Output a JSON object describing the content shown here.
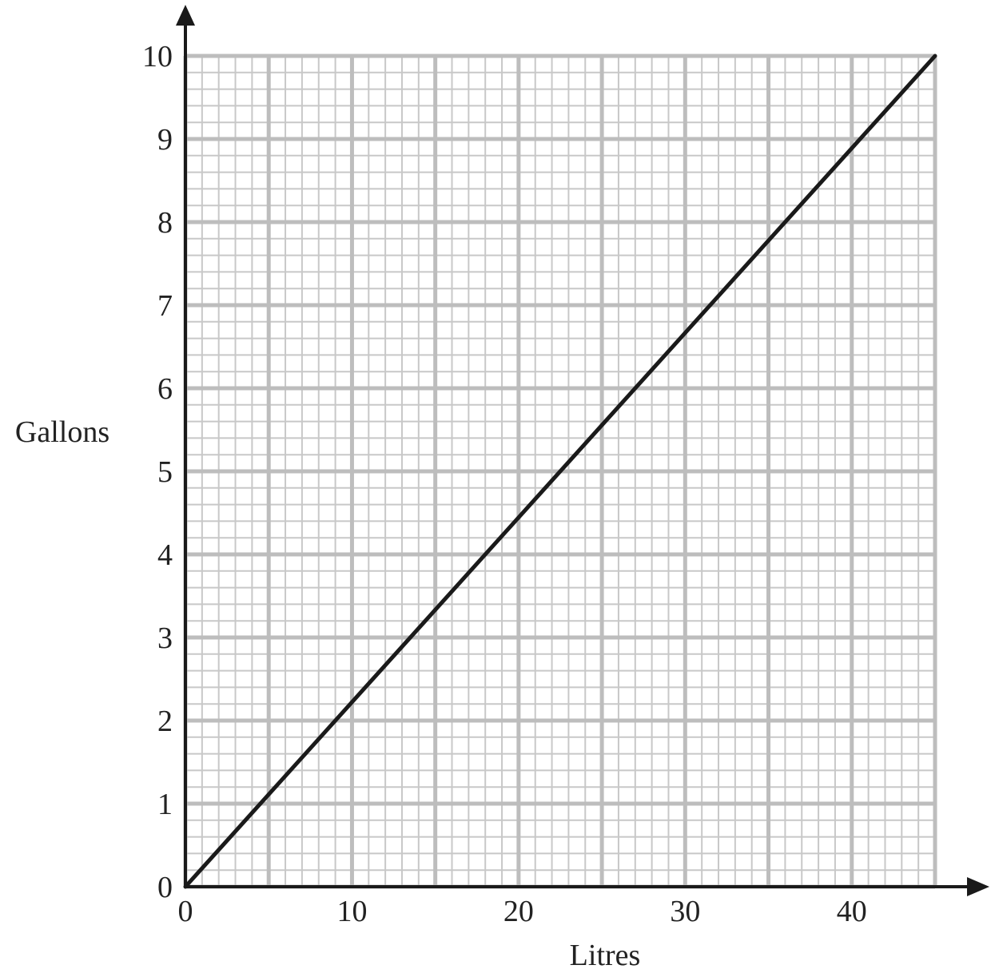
{
  "chart_data": {
    "type": "line",
    "xlabel": "Litres",
    "ylabel": "Gallons",
    "xlim": [
      0,
      45
    ],
    "ylim": [
      0,
      10
    ],
    "x_ticks": [
      0,
      10,
      20,
      30,
      40
    ],
    "y_ticks": [
      0,
      1,
      2,
      3,
      4,
      5,
      6,
      7,
      8,
      9,
      10
    ],
    "x_tick_labels": [
      "0",
      "10",
      "20",
      "30",
      "40"
    ],
    "y_tick_labels": [
      "0",
      "1",
      "2",
      "3",
      "4",
      "5",
      "6",
      "7",
      "8",
      "9",
      "10"
    ],
    "grid": true,
    "series": [
      {
        "x": [
          0,
          45
        ],
        "y": [
          0,
          10
        ]
      }
    ],
    "colors": {
      "line": "#1a1a1a",
      "axis": "#1a1a1a",
      "grid_major": "#bdbdbd",
      "grid_minor": "#c8c8c8"
    }
  }
}
